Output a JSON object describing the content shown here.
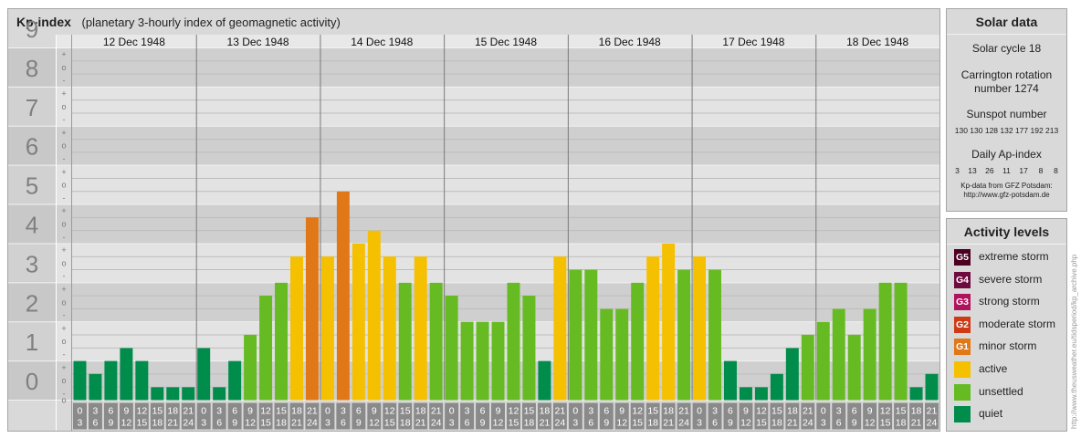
{
  "header": {
    "title": "Kp-index",
    "subtitle": "(planetary 3-hourly index of geomagnetic activity)"
  },
  "chart_data": {
    "type": "bar",
    "x": {
      "days": [
        "12 Dec 1948",
        "13 Dec 1948",
        "14 Dec 1948",
        "15 Dec 1948",
        "16 Dec 1948",
        "17 Dec 1948",
        "18 Dec 1948"
      ],
      "interval_labels": [
        [
          "0",
          "3"
        ],
        [
          "3",
          "6"
        ],
        [
          "6",
          "9"
        ],
        [
          "9",
          "12"
        ],
        [
          "12",
          "15"
        ],
        [
          "15",
          "18"
        ],
        [
          "18",
          "21"
        ],
        [
          "21",
          "24"
        ]
      ]
    },
    "y": {
      "range": [
        0,
        9
      ],
      "major_ticks": [
        "0",
        "1",
        "2",
        "3",
        "4",
        "5",
        "6",
        "7",
        "8",
        "9"
      ],
      "minor_tick_symbols": [
        "+",
        "o",
        "-"
      ],
      "grid": true
    },
    "values": [
      1.0,
      0.67,
      1.0,
      1.33,
      1.0,
      0.33,
      0.33,
      0.33,
      1.33,
      0.33,
      1.0,
      1.67,
      2.67,
      3.0,
      3.67,
      4.67,
      3.67,
      5.33,
      4.0,
      4.33,
      3.67,
      3.0,
      3.67,
      3.0,
      2.67,
      2.0,
      2.0,
      2.0,
      3.0,
      2.67,
      1.0,
      3.67,
      3.33,
      3.33,
      2.33,
      2.33,
      3.0,
      3.67,
      4.0,
      3.33,
      3.67,
      3.33,
      1.0,
      0.33,
      0.33,
      0.67,
      1.33,
      1.67,
      2.0,
      2.33,
      1.67,
      2.33,
      3.0,
      3.0,
      0.33,
      0.67
    ],
    "color_scale": [
      {
        "min": 0,
        "max": 1.5,
        "color": "#008c4a"
      },
      {
        "min": 1.5,
        "max": 3.5,
        "color": "#66bb22"
      },
      {
        "min": 3.5,
        "max": 4.5,
        "color": "#f5c000"
      },
      {
        "min": 4.5,
        "max": 5.5,
        "color": "#e07818"
      }
    ]
  },
  "solar": {
    "title": "Solar data",
    "cycle": "Solar cycle 18",
    "carrington_1": "Carrington rotation",
    "carrington_2": "number 1274",
    "sunspot_title": "Sunspot number",
    "sunspot_values": "130 130 128 132 177 192 213",
    "ap_title": "Daily Ap-index",
    "ap_values": "3    13    26    11    17     8     8",
    "source_1": "Kp-data from GFZ Potsdam:",
    "source_2": "http://www.gfz-potsdam.de"
  },
  "activity": {
    "title": "Activity levels",
    "levels": [
      {
        "badge": "G5",
        "label": "extreme storm",
        "color": "#4b0022"
      },
      {
        "badge": "G4",
        "label": "severe storm",
        "color": "#6e0a3e"
      },
      {
        "badge": "G3",
        "label": "strong storm",
        "color": "#b0125c"
      },
      {
        "badge": "G2",
        "label": "moderate storm",
        "color": "#cf3a16"
      },
      {
        "badge": "G1",
        "label": "minor storm",
        "color": "#e07818"
      },
      {
        "badge": "",
        "label": "active",
        "color": "#f5c000"
      },
      {
        "badge": "",
        "label": "unsettled",
        "color": "#66bb22"
      },
      {
        "badge": "",
        "label": "quiet",
        "color": "#008c4a"
      }
    ]
  },
  "watermark": "http://www.theusweather.eu/tidsperiod/kp_archive.php"
}
